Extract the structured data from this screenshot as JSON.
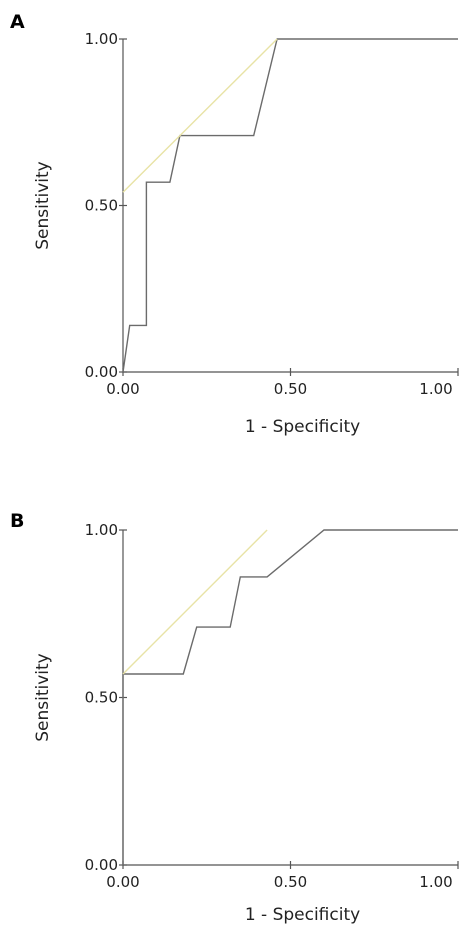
{
  "chart_data": [
    {
      "panel_label": "A",
      "type": "line",
      "xlabel": "1 - Specificity",
      "ylabel": "Sensitivity",
      "xlim": [
        0,
        1
      ],
      "ylim": [
        0,
        1
      ],
      "x_ticks": [
        "0.00",
        "0.50",
        "1.00"
      ],
      "y_ticks": [
        "0.00",
        "0.50",
        "1.00"
      ],
      "grid": false,
      "series": [
        {
          "color": "#6b6b6b",
          "x": [
            0.0,
            0.02,
            0.02,
            0.07,
            0.07,
            0.14,
            0.17,
            0.17,
            0.39,
            0.46,
            0.46,
            1.0
          ],
          "y": [
            0.0,
            0.14,
            0.14,
            0.14,
            0.57,
            0.57,
            0.71,
            0.71,
            0.71,
            1.0,
            1.0,
            1.0
          ]
        },
        {
          "color": "#e8e3a6",
          "x": [
            0.0,
            0.46
          ],
          "y": [
            0.54,
            1.0
          ]
        }
      ]
    },
    {
      "panel_label": "B",
      "type": "line",
      "xlabel": "1 - Specificity",
      "ylabel": "Sensitivity",
      "xlim": [
        0,
        1
      ],
      "ylim": [
        0,
        1
      ],
      "x_ticks": [
        "0.00",
        "0.50",
        "1.00"
      ],
      "y_ticks": [
        "0.00",
        "0.50",
        "1.00"
      ],
      "grid": false,
      "series": [
        {
          "color": "#6b6b6b",
          "x": [
            0.0,
            0.0,
            0.18,
            0.22,
            0.32,
            0.35,
            0.43,
            0.6,
            1.0
          ],
          "y": [
            0.0,
            0.57,
            0.57,
            0.71,
            0.71,
            0.86,
            0.86,
            1.0,
            1.0
          ]
        },
        {
          "color": "#e8e3a6",
          "x": [
            0.0,
            0.43
          ],
          "y": [
            0.57,
            1.0
          ]
        }
      ]
    }
  ]
}
